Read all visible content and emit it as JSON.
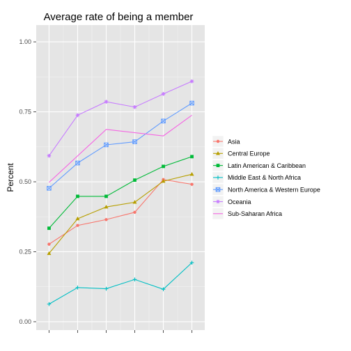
{
  "chart_data": {
    "type": "line",
    "title": "Average rate of being a member",
    "xlabel": "",
    "ylabel": "Percent",
    "x": [
      1,
      2,
      3,
      4,
      5,
      6
    ],
    "xlim": [
      0.55,
      6.45
    ],
    "ylim": [
      -0.03,
      1.06
    ],
    "yticks": [
      0.0,
      0.25,
      0.5,
      0.75,
      1.0
    ],
    "ytick_labels": [
      "0.00",
      "0.25",
      "0.50",
      "0.75",
      "1.00"
    ],
    "grid": true,
    "legend_position": "right",
    "series": [
      {
        "name": "Asia",
        "color": "#F8766D",
        "marker": "circle",
        "values": [
          0.277,
          0.344,
          0.365,
          0.391,
          0.508,
          0.491
        ]
      },
      {
        "name": "Central Europe",
        "color": "#B79F00",
        "marker": "triangle",
        "values": [
          0.244,
          0.368,
          0.41,
          0.427,
          0.502,
          0.527
        ]
      },
      {
        "name": "Latin American & Caribbean",
        "color": "#00BA38",
        "marker": "square",
        "values": [
          0.334,
          0.448,
          0.448,
          0.506,
          0.555,
          0.59
        ]
      },
      {
        "name": "Middle East & North Africa",
        "color": "#00BFC4",
        "marker": "plus",
        "values": [
          0.063,
          0.122,
          0.118,
          0.151,
          0.116,
          0.211
        ]
      },
      {
        "name": "North America & Western Europe",
        "color": "#619CFF",
        "marker": "boxx",
        "values": [
          0.477,
          0.567,
          0.632,
          0.643,
          0.717,
          0.781
        ]
      },
      {
        "name": "Oceania",
        "color": "#C77CFF",
        "marker": "star",
        "values": [
          0.593,
          0.738,
          0.786,
          0.767,
          0.814,
          0.859
        ]
      },
      {
        "name": "Sub-Saharan Africa",
        "color": "#F564E3",
        "marker": "none",
        "values": [
          0.498,
          null,
          0.687,
          null,
          0.664,
          0.738
        ]
      }
    ]
  }
}
